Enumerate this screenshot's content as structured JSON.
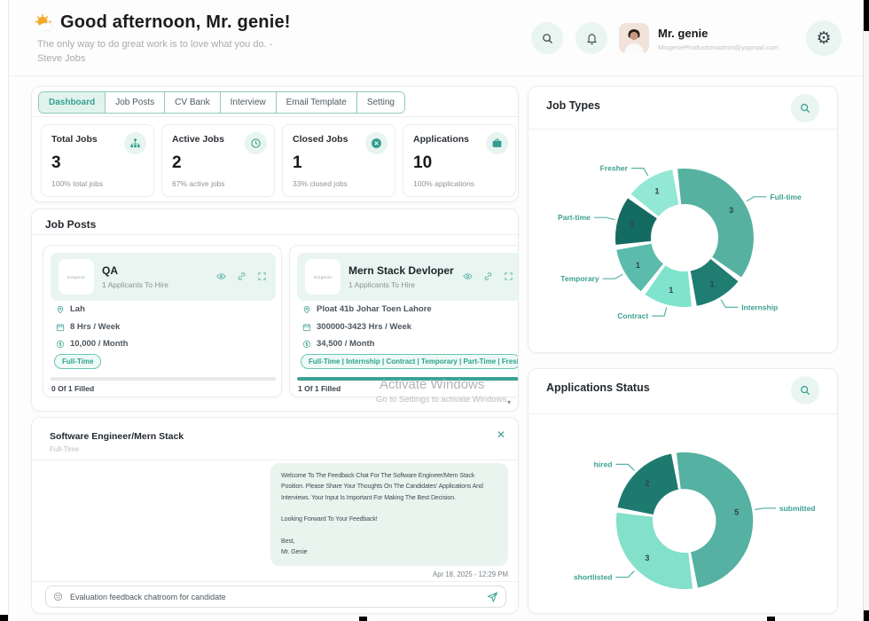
{
  "header": {
    "greeting": "Good afternoon, Mr. genie!",
    "quote": "The only way to do great work is to love what you do. - Steve Jobs",
    "user_name": "Mr. genie",
    "user_email": "MisgenieProductionadmin@yopmail.com"
  },
  "tabs": [
    {
      "label": "Dashboard",
      "active": true
    },
    {
      "label": "Job Posts",
      "active": false
    },
    {
      "label": "CV Bank",
      "active": false
    },
    {
      "label": "Interview",
      "active": false
    },
    {
      "label": "Email Template",
      "active": false
    },
    {
      "label": "Setting",
      "active": false
    }
  ],
  "stats": [
    {
      "title": "Total Jobs",
      "icon": "sitemap-icon",
      "value": "3",
      "caption": "100% total jobs"
    },
    {
      "title": "Active Jobs",
      "icon": "clock-icon",
      "value": "2",
      "caption": "67% active jobs"
    },
    {
      "title": "Closed Jobs",
      "icon": "close-circle-icon",
      "value": "1",
      "caption": "33% closed jobs"
    },
    {
      "title": "Applications",
      "icon": "briefcase-icon",
      "value": "10",
      "caption": "100% applications"
    }
  ],
  "job_posts": {
    "title": "Job Posts",
    "logo_text": "misgenie",
    "cards": [
      {
        "title": "QA",
        "subtitle": "1 Applicants To Hire",
        "location": "Lah",
        "hours": "8 Hrs / Week",
        "salary": "10,000 / Month",
        "types": "Full-Time",
        "filled_label": "0 Of 1 Filled",
        "progress": 0
      },
      {
        "title": "Mern Stack Devloper",
        "subtitle": "1 Applicants To Hire",
        "location": "Ploat 41b Johar Toen Lahore",
        "hours": "300000-3423 Hrs / Week",
        "salary": "34,500 / Month",
        "types": "Full-Time | Internship | Contract | Temporary | Part-Time | Fresher",
        "filled_label": "1 Of 1 Filled",
        "progress": 100
      }
    ]
  },
  "watermark": {
    "line1": "Activate Windows",
    "line2": "Go to Settings to activate Windows."
  },
  "chat": {
    "title": "Software Engineer/Mern Stack",
    "subtitle": "Full-Time",
    "message_lines": [
      "Welcome To The Feedback Chat For The Software Engineer/Mern Stack",
      "Position. Please Share Your Thoughts On The Candidates' Applications And",
      "Interviews. Your Input Is Important For Making The Best Decision.",
      "",
      "Looking Forward To Your Feedback!",
      "",
      "Best,",
      "Mr. Genie"
    ],
    "timestamp": "Apr 18, 2025 - 12:29 PM",
    "input_placeholder": "Evaluation feedback chatroom for candidate"
  },
  "chart_data": [
    {
      "type": "pie",
      "title": "Job Types",
      "donut": true,
      "legend_position": "outside-labels",
      "series": [
        {
          "name": "Full-time",
          "value": 3,
          "color": "#56b1a1"
        },
        {
          "name": "Internship",
          "value": 1,
          "color": "#1f7d72"
        },
        {
          "name": "Contract",
          "value": 1,
          "color": "#7fe3cd"
        },
        {
          "name": "Temporary",
          "value": 1,
          "color": "#5cbcab"
        },
        {
          "name": "Part-time",
          "value": 1,
          "color": "#146b62"
        },
        {
          "name": "Fresher",
          "value": 1,
          "color": "#92e8d4"
        }
      ]
    },
    {
      "type": "pie",
      "title": "Applications Status",
      "donut": true,
      "legend_position": "outside-labels",
      "series": [
        {
          "name": "submitted",
          "value": 5,
          "color": "#55b1a1"
        },
        {
          "name": "shortlisted",
          "value": 3,
          "color": "#83e0ca"
        },
        {
          "name": "hired",
          "value": 2,
          "color": "#1e7a6f"
        }
      ]
    }
  ],
  "colors": {
    "accent_teal": "#2fa090",
    "mint_bg": "#e9f5f0",
    "active_tab_bg": "#e2f3ee",
    "progress_fill": "#3aa295"
  }
}
